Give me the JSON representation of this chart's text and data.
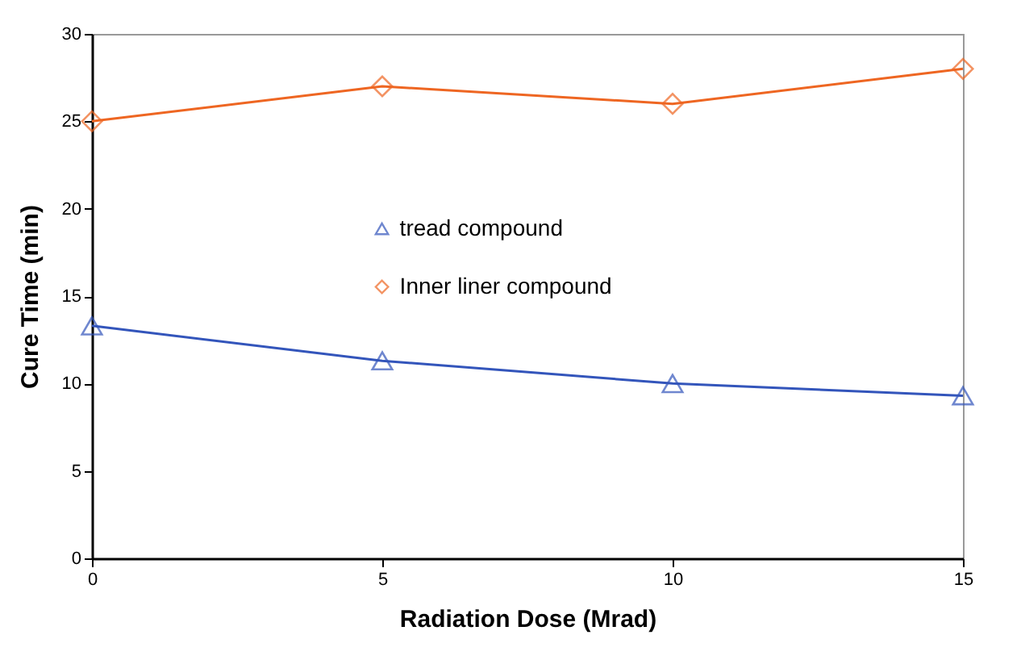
{
  "chart_data": {
    "type": "line",
    "xlabel": "Radiation Dose (Mrad)",
    "ylabel": "Cure Time (min)",
    "x": [
      0,
      5,
      10,
      15
    ],
    "series": [
      {
        "name": "tread compound",
        "color": "#3355bb",
        "marker": "triangle",
        "values": [
          13.3,
          11.3,
          10.0,
          9.3
        ]
      },
      {
        "name": "Inner liner compound",
        "color": "#ee6622",
        "marker": "diamond",
        "values": [
          25,
          27,
          26,
          28
        ]
      }
    ],
    "xlim": [
      0,
      15
    ],
    "xticks": [
      0,
      5,
      10,
      15
    ],
    "ylim": [
      0,
      30
    ],
    "yticks": [
      0,
      5,
      10,
      15,
      20,
      25,
      30
    ],
    "grid": false,
    "legend": "center",
    "line_style": "solid"
  }
}
